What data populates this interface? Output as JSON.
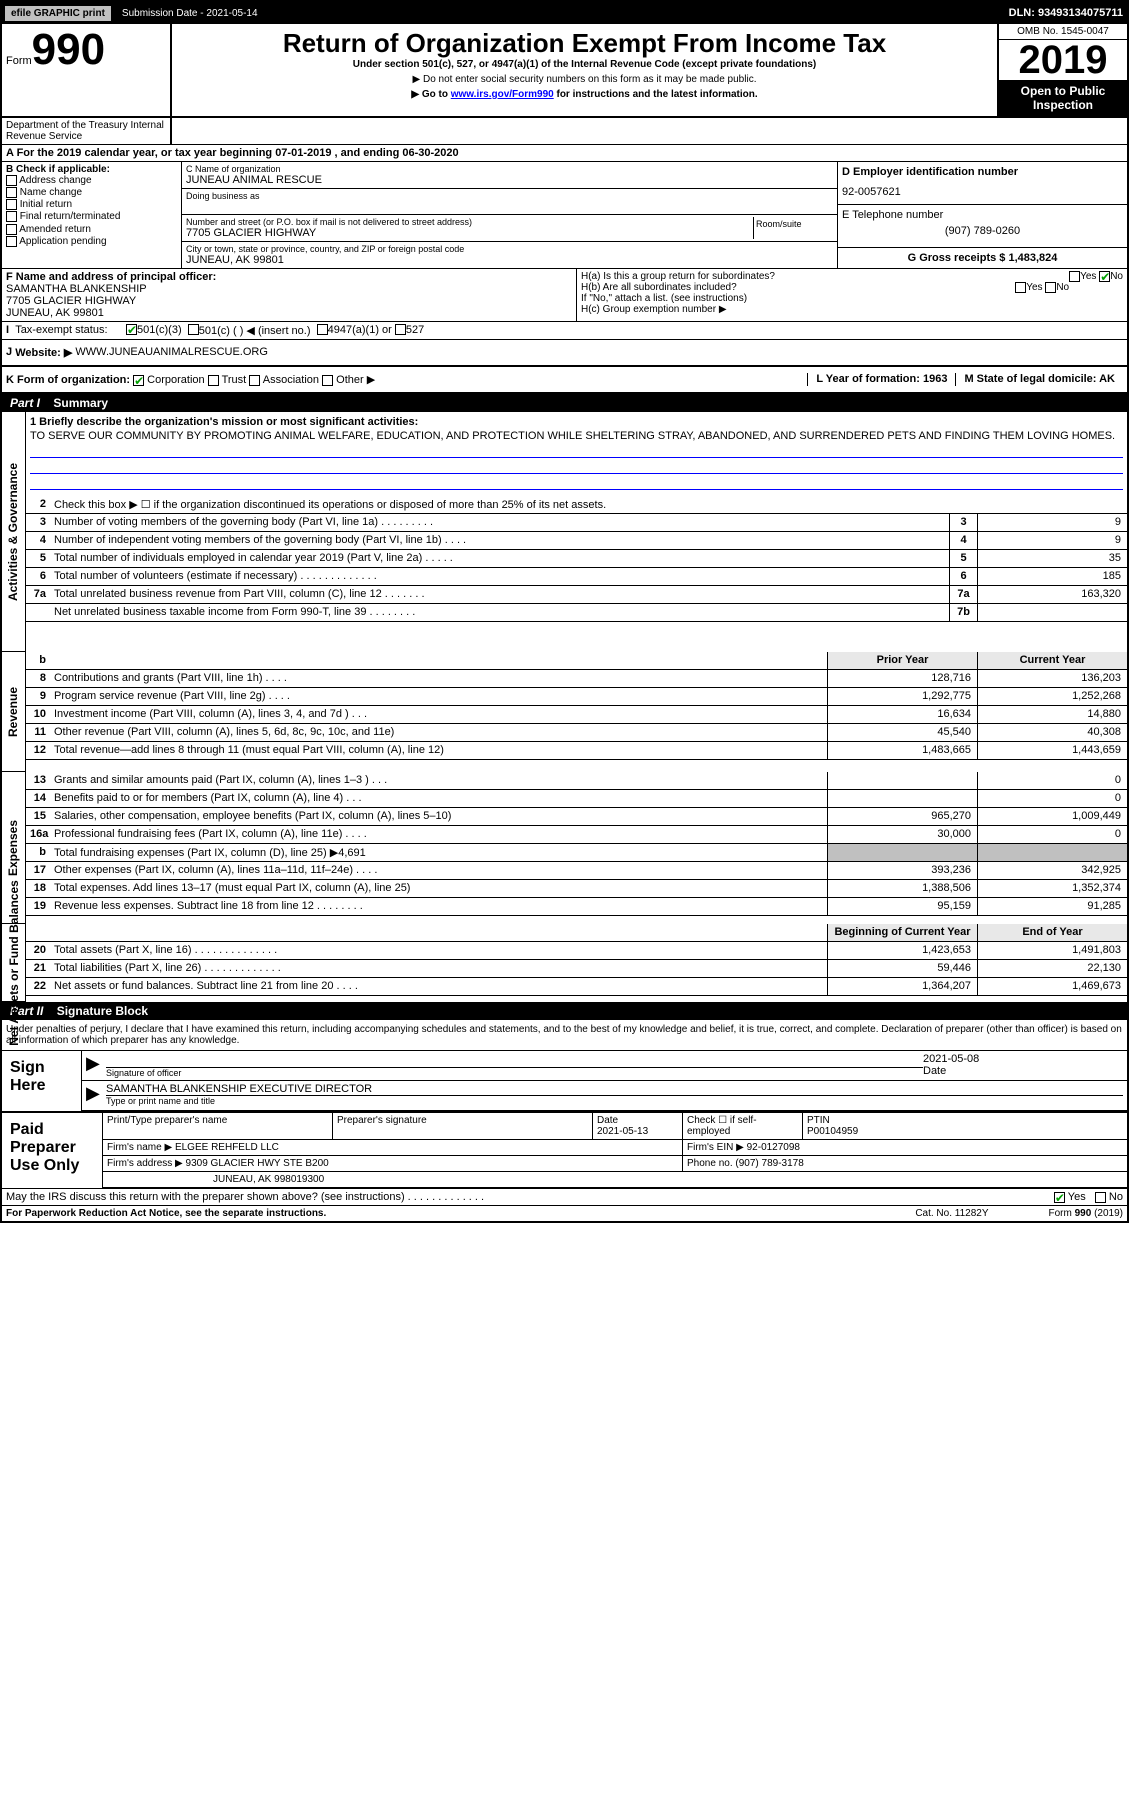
{
  "topbar": {
    "efile": "efile GRAPHIC print",
    "submission_label": "Submission Date - 2021-05-14",
    "dln": "DLN: 93493134075711"
  },
  "header": {
    "form_prefix": "Form",
    "form_number": "990",
    "title": "Return of Organization Exempt From Income Tax",
    "subtitle": "Under section 501(c), 527, or 4947(a)(1) of the Internal Revenue Code (except private foundations)",
    "line1": "▶ Do not enter social security numbers on this form as it may be made public.",
    "line2_pre": "▶ Go to ",
    "line2_link": "www.irs.gov/Form990",
    "line2_post": " for instructions and the latest information.",
    "omb": "OMB No. 1545-0047",
    "year": "2019",
    "open": "Open to Public Inspection",
    "dept": "Department of the Treasury Internal Revenue Service"
  },
  "period": {
    "text": "A For the 2019 calendar year, or tax year beginning 07-01-2019   , and ending 06-30-2020"
  },
  "box_b": {
    "label": "B Check if applicable:",
    "opts": [
      "Address change",
      "Name change",
      "Initial return",
      "Final return/terminated",
      "Amended return",
      "Application pending"
    ]
  },
  "box_c": {
    "name_label": "C Name of organization",
    "name": "JUNEAU ANIMAL RESCUE",
    "dba_label": "Doing business as",
    "addr_label": "Number and street (or P.O. box if mail is not delivered to street address)",
    "addr": "7705 GLACIER HIGHWAY",
    "room_label": "Room/suite",
    "city_label": "City or town, state or province, country, and ZIP or foreign postal code",
    "city": "JUNEAU, AK  99801"
  },
  "box_d": {
    "label": "D Employer identification number",
    "value": "92-0057621"
  },
  "box_e": {
    "label": "E Telephone number",
    "value": "(907) 789-0260"
  },
  "box_g": {
    "label": "G Gross receipts $ 1,483,824"
  },
  "box_f": {
    "label": "F  Name and address of principal officer:",
    "name": "SAMANTHA BLANKENSHIP",
    "addr": "7705 GLACIER HIGHWAY",
    "city": "JUNEAU, AK  99801"
  },
  "box_h": {
    "a": "H(a)  Is this a group return for subordinates?",
    "b": "H(b)  Are all subordinates included?",
    "b_note": "If \"No,\" attach a list. (see instructions)",
    "c": "H(c)  Group exemption number ▶"
  },
  "box_i": {
    "label": "Tax-exempt status:",
    "opts": [
      "501(c)(3)",
      "501(c) (  ) ◀ (insert no.)",
      "4947(a)(1) or",
      "527"
    ]
  },
  "box_j": {
    "label": "J",
    "text": "Website: ▶",
    "value": "WWW.JUNEAUANIMALRESCUE.ORG"
  },
  "box_k": {
    "label": "K Form of organization:",
    "opts": [
      "Corporation",
      "Trust",
      "Association",
      "Other ▶"
    ]
  },
  "box_l": {
    "label": "L Year of formation: 1963"
  },
  "box_m": {
    "label": "M State of legal domicile: AK"
  },
  "part1": {
    "header": "Part I",
    "title": "Summary"
  },
  "mission": {
    "label": "1  Briefly describe the organization's mission or most significant activities:",
    "text": "TO SERVE OUR COMMUNITY BY PROMOTING ANIMAL WELFARE, EDUCATION, AND PROTECTION WHILE SHELTERING STRAY, ABANDONED, AND SURRENDERED PETS AND FINDING THEM LOVING HOMES."
  },
  "line2": "Check this box ▶ ☐  if the organization discontinued its operations or disposed of more than 25% of its net assets.",
  "sections": {
    "governance": {
      "label": "Activities & Governance",
      "rows": [
        {
          "n": "3",
          "t": "Number of voting members of the governing body (Part VI, line 1a)  .  .  .  .  .  .  .  .  .",
          "c": "3",
          "v": "9"
        },
        {
          "n": "4",
          "t": "Number of independent voting members of the governing body (Part VI, line 1b)  .  .  .  .",
          "c": "4",
          "v": "9"
        },
        {
          "n": "5",
          "t": "Total number of individuals employed in calendar year 2019 (Part V, line 2a)  .  .  .  .  .",
          "c": "5",
          "v": "35"
        },
        {
          "n": "6",
          "t": "Total number of volunteers (estimate if necessary)   .  .  .  .  .  .  .  .  .  .  .  .  .",
          "c": "6",
          "v": "185"
        },
        {
          "n": "7a",
          "t": "Total unrelated business revenue from Part VIII, column (C), line 12  .  .  .  .  .  .  .",
          "c": "7a",
          "v": "163,320"
        },
        {
          "n": "",
          "t": "Net unrelated business taxable income from Form 990-T, line 39   .  .  .  .  .  .  .  .",
          "c": "7b",
          "v": ""
        }
      ]
    },
    "revenue": {
      "label": "Revenue",
      "header_prior": "Prior Year",
      "header_current": "Current Year",
      "rows": [
        {
          "n": "8",
          "t": "Contributions and grants (Part VIII, line 1h)   .  .  .  .",
          "p": "128,716",
          "c": "136,203"
        },
        {
          "n": "9",
          "t": "Program service revenue (Part VIII, line 2g)   .  .  .  .",
          "p": "1,292,775",
          "c": "1,252,268"
        },
        {
          "n": "10",
          "t": "Investment income (Part VIII, column (A), lines 3, 4, and 7d )  .  .  .",
          "p": "16,634",
          "c": "14,880"
        },
        {
          "n": "11",
          "t": "Other revenue (Part VIII, column (A), lines 5, 6d, 8c, 9c, 10c, and 11e)",
          "p": "45,540",
          "c": "40,308"
        },
        {
          "n": "12",
          "t": "Total revenue—add lines 8 through 11 (must equal Part VIII, column (A), line 12)",
          "p": "1,483,665",
          "c": "1,443,659"
        }
      ]
    },
    "expenses": {
      "label": "Expenses",
      "rows": [
        {
          "n": "13",
          "t": "Grants and similar amounts paid (Part IX, column (A), lines 1–3 )  .  .  .",
          "p": "",
          "c": "0"
        },
        {
          "n": "14",
          "t": "Benefits paid to or for members (Part IX, column (A), line 4)  .  .  .",
          "p": "",
          "c": "0"
        },
        {
          "n": "15",
          "t": "Salaries, other compensation, employee benefits (Part IX, column (A), lines 5–10)",
          "p": "965,270",
          "c": "1,009,449"
        },
        {
          "n": "16a",
          "t": "Professional fundraising fees (Part IX, column (A), line 11e)  .  .  .  .",
          "p": "30,000",
          "c": "0"
        },
        {
          "n": "b",
          "t": "Total fundraising expenses (Part IX, column (D), line 25) ▶4,691",
          "p": "shaded",
          "c": "shaded"
        },
        {
          "n": "17",
          "t": "Other expenses (Part IX, column (A), lines 11a–11d, 11f–24e)  .  .  .  .",
          "p": "393,236",
          "c": "342,925"
        },
        {
          "n": "18",
          "t": "Total expenses. Add lines 13–17 (must equal Part IX, column (A), line 25)",
          "p": "1,388,506",
          "c": "1,352,374"
        },
        {
          "n": "19",
          "t": "Revenue less expenses. Subtract line 18 from line 12  .  .  .  .  .  .  .  .",
          "p": "95,159",
          "c": "91,285"
        }
      ]
    },
    "netassets": {
      "label": "Net Assets or Fund Balances",
      "header_prior": "Beginning of Current Year",
      "header_current": "End of Year",
      "rows": [
        {
          "n": "20",
          "t": "Total assets (Part X, line 16)  .  .  .  .  .  .  .  .  .  .  .  .  .  .",
          "p": "1,423,653",
          "c": "1,491,803"
        },
        {
          "n": "21",
          "t": "Total liabilities (Part X, line 26)  .  .  .  .  .  .  .  .  .  .  .  .  .",
          "p": "59,446",
          "c": "22,130"
        },
        {
          "n": "22",
          "t": "Net assets or fund balances. Subtract line 21 from line 20   .  .  .  .",
          "p": "1,364,207",
          "c": "1,469,673"
        }
      ]
    }
  },
  "part2": {
    "header": "Part II",
    "title": "Signature Block"
  },
  "sig": {
    "declaration": "Under penalties of perjury, I declare that I have examined this return, including accompanying schedules and statements, and to the best of my knowledge and belief, it is true, correct, and complete. Declaration of preparer (other than officer) is based on all information of which preparer has any knowledge.",
    "sign_here": "Sign Here",
    "sig_officer": "Signature of officer",
    "date": "2021-05-08",
    "date_label": "Date",
    "name": "SAMANTHA BLANKENSHIP  EXECUTIVE DIRECTOR",
    "name_label": "Type or print name and title"
  },
  "prep": {
    "label": "Paid Preparer Use Only",
    "print_name_label": "Print/Type preparer's name",
    "sig_label": "Preparer's signature",
    "date_label": "Date",
    "date": "2021-05-13",
    "check_label": "Check ☐ if self-employed",
    "ptin_label": "PTIN",
    "ptin": "P00104959",
    "firm_name_label": "Firm's name    ▶",
    "firm_name": "ELGEE REHFELD LLC",
    "firm_ein_label": "Firm's EIN ▶",
    "firm_ein": "92-0127098",
    "firm_addr_label": "Firm's address ▶",
    "firm_addr": "9309 GLACIER HWY STE B200",
    "firm_city": "JUNEAU, AK  998019300",
    "phone_label": "Phone no.",
    "phone": "(907) 789-3178"
  },
  "discuss": "May the IRS discuss this return with the preparer shown above? (see instructions)   .  .  .  .  .  .  .  .  .  .  .  .  .",
  "footer": {
    "left": "For Paperwork Reduction Act Notice, see the separate instructions.",
    "mid": "Cat. No. 11282Y",
    "right": "Form 990 (2019)"
  }
}
